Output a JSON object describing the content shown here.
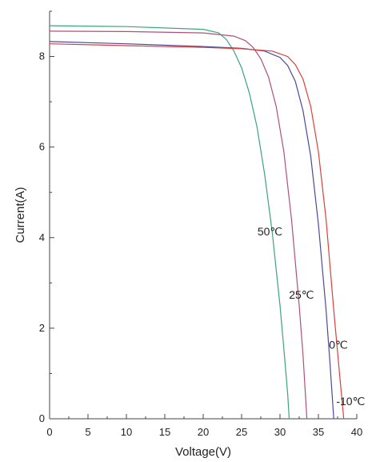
{
  "chart_data": {
    "type": "line",
    "title": "",
    "xlabel": "Voltage(V)",
    "ylabel": "Current(A)",
    "xlim": [
      0,
      40
    ],
    "ylim": [
      0,
      9
    ],
    "xticks": [
      0,
      5,
      10,
      15,
      20,
      25,
      30,
      35,
      40
    ],
    "yticks": [
      0,
      2,
      4,
      6,
      8
    ],
    "grid": false,
    "series": [
      {
        "name": "50℃",
        "color": "#3aa57a",
        "x": [
          0,
          10,
          20,
          22,
          23,
          24,
          25,
          26,
          27,
          28,
          29,
          30,
          30.5,
          31,
          31.2
        ],
        "y": [
          8.68,
          8.66,
          8.6,
          8.52,
          8.38,
          8.12,
          7.75,
          7.2,
          6.45,
          5.4,
          4.1,
          2.5,
          1.55,
          0.55,
          0
        ]
      },
      {
        "name": "25℃",
        "color": "#b0507a",
        "x": [
          0,
          10,
          20,
          24,
          25.5,
          26.5,
          27.5,
          28.5,
          29.5,
          30.5,
          31.5,
          32.5,
          33,
          33.5
        ],
        "y": [
          8.56,
          8.55,
          8.52,
          8.45,
          8.35,
          8.2,
          7.95,
          7.55,
          6.9,
          5.9,
          4.4,
          2.5,
          1.4,
          0
        ]
      },
      {
        "name": "0℃",
        "color": "#4a4a9a",
        "x": [
          0,
          10,
          20,
          25,
          28,
          30,
          31,
          32,
          33,
          34,
          35,
          36,
          36.5,
          37
        ],
        "y": [
          8.33,
          8.28,
          8.22,
          8.18,
          8.12,
          7.98,
          7.8,
          7.45,
          6.8,
          5.8,
          4.3,
          2.4,
          1.25,
          0
        ]
      },
      {
        "name": "-10℃",
        "color": "#d94040",
        "x": [
          0,
          10,
          20,
          25,
          29,
          31,
          32,
          33,
          34,
          35,
          36,
          37,
          37.8,
          38.3
        ],
        "y": [
          8.28,
          8.24,
          8.2,
          8.17,
          8.12,
          8.0,
          7.82,
          7.5,
          6.9,
          5.9,
          4.4,
          2.4,
          0.9,
          0
        ]
      }
    ],
    "labels": [
      {
        "series": "50℃",
        "text": "50℃",
        "x": 28.7,
        "y": 4.05
      },
      {
        "series": "25℃",
        "text": "25℃",
        "x": 32.8,
        "y": 2.65
      },
      {
        "series": "0℃",
        "text": "0℃",
        "x": 37.6,
        "y": 1.55
      },
      {
        "series": "-10℃",
        "text": "-10℃",
        "x": 39.2,
        "y": 0.3
      }
    ]
  }
}
